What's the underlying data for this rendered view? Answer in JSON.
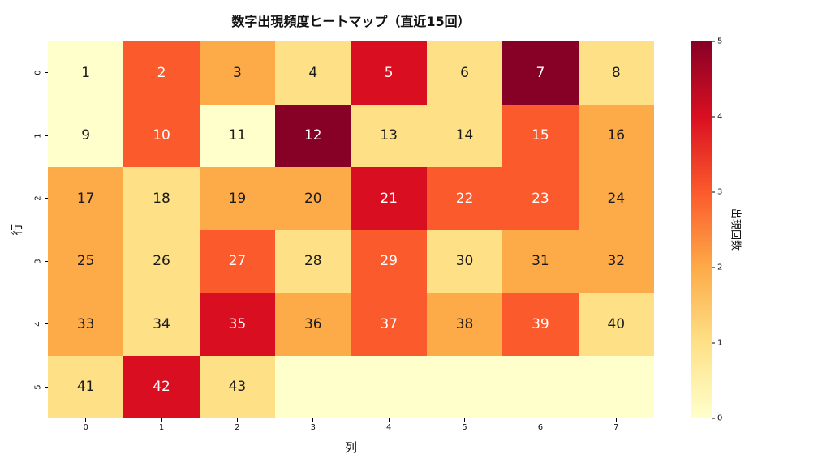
{
  "chart_data": {
    "type": "heatmap",
    "title": "数字出現頻度ヒートマップ（直近15回）",
    "xlabel": "列",
    "ylabel": "行",
    "colorbar_label": "出現回数",
    "x_ticks": [
      "0",
      "1",
      "2",
      "3",
      "4",
      "5",
      "6",
      "7"
    ],
    "y_ticks": [
      "0",
      "1",
      "2",
      "3",
      "4",
      "5"
    ],
    "colorbar_ticks": [
      0,
      1,
      2,
      3,
      4,
      5
    ],
    "vmin": 0,
    "vmax": 5,
    "rows": 6,
    "cols": 8,
    "cell_numbers": [
      [
        1,
        2,
        3,
        4,
        5,
        6,
        7,
        8
      ],
      [
        9,
        10,
        11,
        12,
        13,
        14,
        15,
        16
      ],
      [
        17,
        18,
        19,
        20,
        21,
        22,
        23,
        24
      ],
      [
        25,
        26,
        27,
        28,
        29,
        30,
        31,
        32
      ],
      [
        33,
        34,
        35,
        36,
        37,
        38,
        39,
        40
      ],
      [
        41,
        42,
        43,
        null,
        null,
        null,
        null,
        null
      ]
    ],
    "values": [
      [
        0,
        3,
        2,
        1,
        4,
        1,
        5,
        1
      ],
      [
        0,
        3,
        0,
        5,
        1,
        1,
        3,
        2
      ],
      [
        2,
        1,
        2,
        2,
        4,
        3,
        3,
        2
      ],
      [
        2,
        1,
        3,
        1,
        3,
        1,
        2,
        2
      ],
      [
        2,
        1,
        4,
        2,
        3,
        2,
        3,
        1
      ],
      [
        1,
        4,
        1,
        0,
        0,
        0,
        0,
        0
      ]
    ],
    "colormap": {
      "name": "YlOrRd",
      "stops": [
        "#ffffcc",
        "#fee187",
        "#fdaa48",
        "#fb5a2c",
        "#d90f21",
        "#870126"
      ]
    },
    "text_colors": {
      "light_cell_text": "#1a1a1a",
      "dark_cell_text": "#ffffff"
    },
    "white_text_min_value": 3,
    "grid": false,
    "legend_position": "right-colorbar"
  }
}
